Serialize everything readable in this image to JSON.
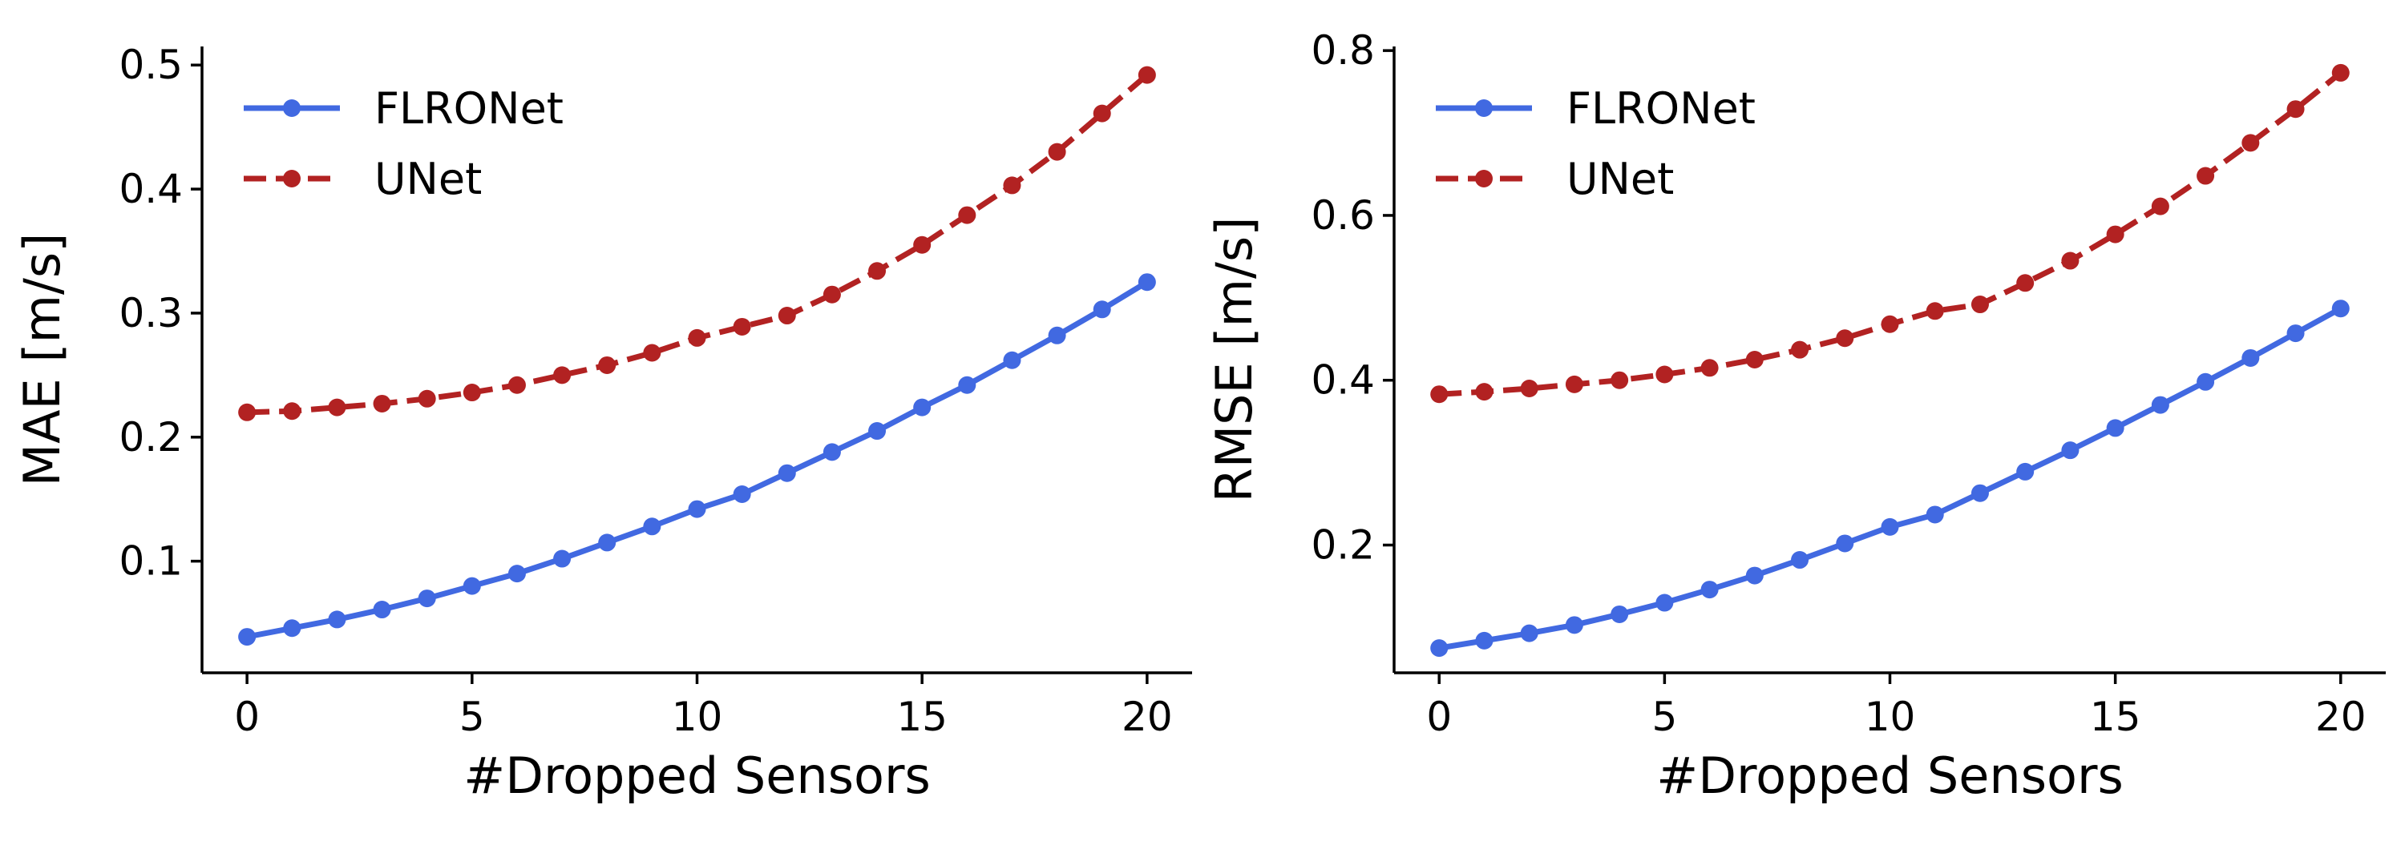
{
  "chart_data": [
    {
      "type": "line",
      "xlabel": "#Dropped Sensors",
      "ylabel": "MAE [m/s]",
      "xlim": [
        -1,
        21
      ],
      "ylim": [
        0.01,
        0.515
      ],
      "xticks": [
        0,
        5,
        10,
        15,
        20
      ],
      "yticks": [
        0.1,
        0.2,
        0.3,
        0.4,
        0.5
      ],
      "grid": false,
      "legend": "top-left",
      "x": [
        0,
        1,
        2,
        3,
        4,
        5,
        6,
        7,
        8,
        9,
        10,
        11,
        12,
        13,
        14,
        15,
        16,
        17,
        18,
        19,
        20
      ],
      "series": [
        {
          "name": "FLRONet",
          "color": "#4169e1",
          "line_style": "solid",
          "marker": "circle",
          "values": [
            0.039,
            0.046,
            0.053,
            0.061,
            0.07,
            0.08,
            0.09,
            0.102,
            0.115,
            0.128,
            0.142,
            0.154,
            0.171,
            0.188,
            0.205,
            0.224,
            0.242,
            0.262,
            0.282,
            0.303,
            0.325
          ]
        },
        {
          "name": "UNet",
          "color": "#b22222",
          "line_style": "dashed",
          "marker": "circle",
          "values": [
            0.22,
            0.221,
            0.224,
            0.227,
            0.231,
            0.236,
            0.242,
            0.25,
            0.258,
            0.268,
            0.28,
            0.289,
            0.298,
            0.315,
            0.334,
            0.355,
            0.379,
            0.403,
            0.43,
            0.461,
            0.492
          ]
        }
      ]
    },
    {
      "type": "line",
      "xlabel": "#Dropped Sensors",
      "ylabel": "RMSE [m/s]",
      "xlim": [
        -1,
        21
      ],
      "ylim": [
        0.045,
        0.805
      ],
      "xticks": [
        0,
        5,
        10,
        15,
        20
      ],
      "yticks": [
        0.2,
        0.4,
        0.6,
        0.8
      ],
      "grid": false,
      "legend": "top-left",
      "x": [
        0,
        1,
        2,
        3,
        4,
        5,
        6,
        7,
        8,
        9,
        10,
        11,
        12,
        13,
        14,
        15,
        16,
        17,
        18,
        19,
        20
      ],
      "series": [
        {
          "name": "FLRONet",
          "color": "#4169e1",
          "line_style": "solid",
          "marker": "circle",
          "values": [
            0.075,
            0.084,
            0.093,
            0.103,
            0.116,
            0.13,
            0.146,
            0.163,
            0.182,
            0.202,
            0.222,
            0.237,
            0.263,
            0.289,
            0.315,
            0.342,
            0.37,
            0.398,
            0.427,
            0.457,
            0.487
          ]
        },
        {
          "name": "UNet",
          "color": "#b22222",
          "line_style": "dashed",
          "marker": "circle",
          "values": [
            0.383,
            0.386,
            0.39,
            0.395,
            0.4,
            0.407,
            0.415,
            0.425,
            0.437,
            0.451,
            0.468,
            0.484,
            0.492,
            0.518,
            0.545,
            0.577,
            0.611,
            0.648,
            0.688,
            0.729,
            0.773
          ]
        }
      ]
    }
  ]
}
